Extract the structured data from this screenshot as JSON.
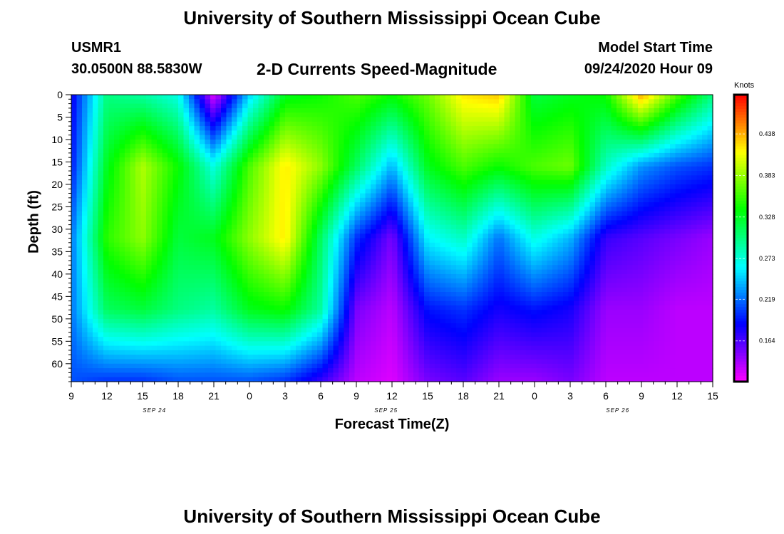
{
  "header": {
    "title_top": "University of Southern Mississippi Ocean Cube",
    "station": "USMR1",
    "location": "30.0500N 88.5830W",
    "subtitle": "2-D Currents Speed-Magnitude",
    "model_label": "Model Start Time",
    "model_time": "09/24/2020 Hour 09",
    "title_bottom": "University of Southern Mississippi Ocean Cube"
  },
  "chart_data": {
    "type": "heatmap",
    "title": "2-D Currents Speed-Magnitude",
    "xlabel": "Forecast Time(Z)",
    "ylabel": "Depth (ft)",
    "x_tick_labels": [
      "9",
      "12",
      "15",
      "18",
      "21",
      "0",
      "3",
      "6",
      "9",
      "12",
      "15",
      "18",
      "21",
      "0",
      "3",
      "6",
      "9",
      "12",
      "15"
    ],
    "x_range_hours": [
      0,
      54
    ],
    "date_labels": [
      {
        "hour": 7,
        "label": "SEP 24"
      },
      {
        "hour": 26.5,
        "label": "SEP 25"
      },
      {
        "hour": 46,
        "label": "SEP 26"
      }
    ],
    "y_ticks": [
      0,
      5,
      10,
      15,
      20,
      25,
      30,
      35,
      40,
      45,
      50,
      55,
      60
    ],
    "y_range": [
      0,
      64
    ],
    "y_inverted": true,
    "colorbar": {
      "title": "Knots",
      "ticks": [
        0.164,
        0.219,
        0.273,
        0.328,
        0.383,
        0.438
      ],
      "range": [
        0.11,
        0.49
      ]
    },
    "depth_levels": [
      0,
      16,
      32,
      48,
      64
    ],
    "time_hours": [
      0,
      3,
      6,
      9,
      12,
      15,
      18,
      21,
      24,
      27,
      30,
      33,
      36,
      39,
      42,
      45,
      48,
      51,
      54
    ],
    "speed_by_depth": [
      [
        0.18,
        0.3,
        0.29,
        0.27,
        0.12,
        0.25,
        0.33,
        0.34,
        0.36,
        0.34,
        0.37,
        0.42,
        0.43,
        0.32,
        0.33,
        0.34,
        0.44,
        0.36,
        0.3
      ],
      [
        0.19,
        0.33,
        0.39,
        0.34,
        0.27,
        0.36,
        0.42,
        0.38,
        0.31,
        0.24,
        0.33,
        0.36,
        0.34,
        0.36,
        0.37,
        0.28,
        0.23,
        0.21,
        0.2
      ],
      [
        0.22,
        0.35,
        0.38,
        0.32,
        0.33,
        0.38,
        0.42,
        0.31,
        0.2,
        0.15,
        0.26,
        0.28,
        0.22,
        0.27,
        0.24,
        0.17,
        0.16,
        0.15,
        0.14
      ],
      [
        0.22,
        0.31,
        0.32,
        0.3,
        0.29,
        0.33,
        0.34,
        0.29,
        0.15,
        0.13,
        0.19,
        0.2,
        0.18,
        0.19,
        0.18,
        0.14,
        0.14,
        0.13,
        0.13
      ],
      [
        0.21,
        0.2,
        0.2,
        0.21,
        0.21,
        0.21,
        0.2,
        0.17,
        0.13,
        0.12,
        0.15,
        0.16,
        0.14,
        0.14,
        0.15,
        0.13,
        0.13,
        0.13,
        0.13
      ]
    ]
  }
}
